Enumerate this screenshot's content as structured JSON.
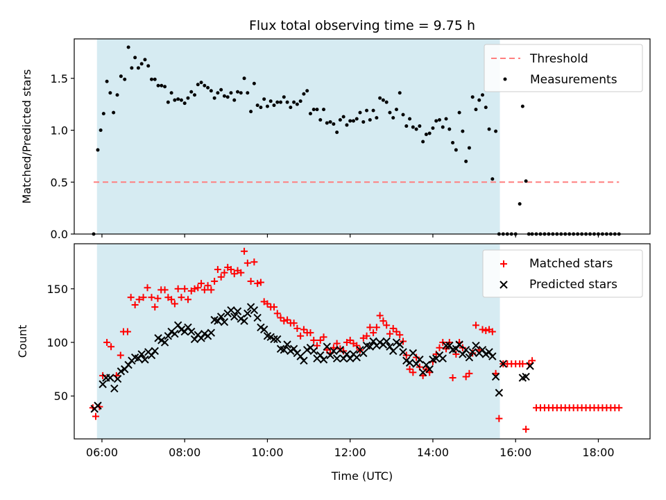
{
  "title": "Flux total observing time = 9.75 h",
  "colors": {
    "shade": "#add8e6",
    "threshold": "#ff7f7f",
    "measurements": "#000000",
    "matched": "#ff0000",
    "predicted": "#000000"
  },
  "chart_data": [
    {
      "type": "scatter",
      "title": "Flux total observing time = 9.75 h",
      "xlabel": "",
      "ylabel": "Matched/Predicted stars",
      "xlim": [
        5.33,
        19.25
      ],
      "ylim": [
        0,
        1.88
      ],
      "yticks": [
        0.0,
        0.5,
        1.0,
        1.5
      ],
      "ytick_labels": [
        "0.0",
        "0.5",
        "1.0",
        "1.5"
      ],
      "xticks": [
        6,
        8,
        10,
        12,
        14,
        16,
        18
      ],
      "shaded_span": [
        5.88,
        15.62
      ],
      "legend_position": "upper right",
      "threshold": {
        "name": "Threshold",
        "x": [
          5.8,
          18.5
        ],
        "y": [
          0.5,
          0.5
        ],
        "style": "dashed"
      },
      "series": [
        {
          "name": "Measurements",
          "marker": "dot",
          "x": [
            5.8,
            5.9,
            5.97,
            6.04,
            6.12,
            6.2,
            6.28,
            6.37,
            6.46,
            6.55,
            6.64,
            6.72,
            6.8,
            6.88,
            6.96,
            7.04,
            7.12,
            7.2,
            7.28,
            7.36,
            7.44,
            7.52,
            7.6,
            7.68,
            7.76,
            7.84,
            7.92,
            8.0,
            8.08,
            8.16,
            8.24,
            8.32,
            8.4,
            8.48,
            8.56,
            8.64,
            8.72,
            8.8,
            8.88,
            8.96,
            9.04,
            9.12,
            9.2,
            9.28,
            9.36,
            9.44,
            9.52,
            9.6,
            9.68,
            9.76,
            9.84,
            9.92,
            10.0,
            10.08,
            10.16,
            10.24,
            10.32,
            10.4,
            10.48,
            10.56,
            10.64,
            10.72,
            10.8,
            10.88,
            10.96,
            11.04,
            11.12,
            11.2,
            11.28,
            11.36,
            11.44,
            11.52,
            11.6,
            11.68,
            11.76,
            11.84,
            11.92,
            12.0,
            12.08,
            12.16,
            12.24,
            12.32,
            12.4,
            12.48,
            12.56,
            12.64,
            12.72,
            12.8,
            12.88,
            12.96,
            13.04,
            13.12,
            13.2,
            13.28,
            13.36,
            13.44,
            13.52,
            13.6,
            13.68,
            13.76,
            13.84,
            13.92,
            14.0,
            14.08,
            14.16,
            14.24,
            14.32,
            14.4,
            14.48,
            14.56,
            14.64,
            14.72,
            14.8,
            14.88,
            14.96,
            15.04,
            15.12,
            15.2,
            15.28,
            15.36,
            15.44,
            15.52,
            15.6,
            15.7,
            15.8,
            15.9,
            16.0,
            16.1,
            16.17,
            16.25,
            16.32,
            16.4,
            16.5,
            16.6,
            16.7,
            16.8,
            16.9,
            17.0,
            17.1,
            17.2,
            17.3,
            17.4,
            17.5,
            17.6,
            17.7,
            17.8,
            17.9,
            18.0,
            18.1,
            18.2,
            18.3,
            18.4,
            18.5
          ],
          "y": [
            0.0,
            0.81,
            1.0,
            1.16,
            1.47,
            1.36,
            1.17,
            1.34,
            1.52,
            1.49,
            1.8,
            1.6,
            1.7,
            1.6,
            1.64,
            1.68,
            1.62,
            1.49,
            1.49,
            1.43,
            1.43,
            1.42,
            1.27,
            1.36,
            1.29,
            1.3,
            1.29,
            1.26,
            1.31,
            1.37,
            1.34,
            1.44,
            1.46,
            1.43,
            1.41,
            1.38,
            1.31,
            1.36,
            1.39,
            1.33,
            1.32,
            1.36,
            1.29,
            1.37,
            1.36,
            1.5,
            1.36,
            1.18,
            1.45,
            1.24,
            1.22,
            1.3,
            1.23,
            1.28,
            1.24,
            1.27,
            1.27,
            1.32,
            1.27,
            1.22,
            1.27,
            1.25,
            1.28,
            1.35,
            1.38,
            1.16,
            1.2,
            1.2,
            1.1,
            1.2,
            1.07,
            1.08,
            1.06,
            0.98,
            1.1,
            1.13,
            1.05,
            1.09,
            1.09,
            1.11,
            1.17,
            1.08,
            1.19,
            1.1,
            1.19,
            1.12,
            1.31,
            1.29,
            1.27,
            1.17,
            1.12,
            1.2,
            1.36,
            1.15,
            1.04,
            1.11,
            1.03,
            1.01,
            1.04,
            0.89,
            0.96,
            0.97,
            1.02,
            1.09,
            1.1,
            1.03,
            1.11,
            1.01,
            0.88,
            0.81,
            1.17,
            0.99,
            0.7,
            0.83,
            1.32,
            1.2,
            1.29,
            1.34,
            1.22,
            1.01,
            0.53,
            0.99,
            0.0,
            0.0,
            0.0,
            0.0,
            0.0,
            0.29,
            1.23,
            0.51,
            0.0,
            0.0,
            0.0,
            0.0,
            0.0,
            0.0,
            0.0,
            0.0,
            0.0,
            0.0,
            0.0,
            0.0,
            0.0,
            0.0,
            0.0,
            0.0,
            0.0,
            0.0,
            0.0,
            0.0,
            0.0,
            0.0,
            0.0
          ]
        }
      ]
    },
    {
      "type": "scatter",
      "xlabel": "Time (UTC)",
      "ylabel": "Count",
      "xlim": [
        5.33,
        19.25
      ],
      "ylim": [
        10,
        192
      ],
      "yticks": [
        50,
        100,
        150
      ],
      "xticks": [
        6,
        8,
        10,
        12,
        14,
        16,
        18
      ],
      "xtick_labels": [
        "06:00",
        "08:00",
        "10:00",
        "12:00",
        "14:00",
        "16:00",
        "18:00"
      ],
      "shaded_span": [
        5.88,
        15.62
      ],
      "legend_position": "upper right",
      "series": [
        {
          "name": "Matched stars",
          "marker": "plus",
          "x": [
            5.78,
            5.85,
            5.94,
            6.02,
            6.12,
            6.22,
            6.35,
            6.45,
            6.52,
            6.62,
            6.7,
            6.8,
            6.9,
            7.0,
            7.1,
            7.2,
            7.28,
            7.35,
            7.43,
            7.52,
            7.6,
            7.68,
            7.76,
            7.84,
            7.92,
            8.0,
            8.08,
            8.16,
            8.24,
            8.32,
            8.4,
            8.48,
            8.56,
            8.64,
            8.72,
            8.8,
            8.88,
            8.96,
            9.04,
            9.12,
            9.2,
            9.28,
            9.36,
            9.44,
            9.52,
            9.6,
            9.68,
            9.76,
            9.84,
            9.92,
            10.0,
            10.08,
            10.16,
            10.24,
            10.32,
            10.4,
            10.48,
            10.56,
            10.64,
            10.72,
            10.8,
            10.88,
            10.96,
            11.04,
            11.12,
            11.2,
            11.28,
            11.36,
            11.44,
            11.52,
            11.6,
            11.68,
            11.76,
            11.84,
            11.92,
            12.0,
            12.08,
            12.16,
            12.24,
            12.32,
            12.4,
            12.48,
            12.56,
            12.64,
            12.72,
            12.8,
            12.88,
            12.96,
            13.04,
            13.12,
            13.2,
            13.28,
            13.36,
            13.44,
            13.52,
            13.6,
            13.68,
            13.76,
            13.84,
            13.92,
            14.0,
            14.08,
            14.16,
            14.24,
            14.32,
            14.4,
            14.48,
            14.56,
            14.64,
            14.72,
            14.8,
            14.88,
            14.96,
            15.04,
            15.12,
            15.2,
            15.28,
            15.36,
            15.44,
            15.52,
            15.6,
            15.7,
            15.8,
            15.9,
            16.0,
            16.1,
            16.17,
            16.25,
            16.32,
            16.4,
            16.5,
            16.6,
            16.7,
            16.8,
            16.9,
            17.0,
            17.1,
            17.2,
            17.3,
            17.4,
            17.5,
            17.6,
            17.7,
            17.8,
            17.9,
            18.0,
            18.1,
            18.2,
            18.3,
            18.4,
            18.5
          ],
          "y": [
            39,
            31,
            40,
            69,
            100,
            96,
            69,
            88,
            110,
            110,
            142,
            135,
            140,
            142,
            151,
            142,
            133,
            141,
            149,
            149,
            142,
            140,
            136,
            150,
            142,
            150,
            140,
            148,
            150,
            151,
            155,
            149,
            153,
            149,
            157,
            168,
            161,
            165,
            170,
            168,
            164,
            167,
            165,
            185,
            174,
            157,
            175,
            155,
            156,
            138,
            136,
            133,
            133,
            127,
            123,
            120,
            121,
            118,
            118,
            113,
            106,
            112,
            109,
            109,
            102,
            97,
            102,
            105,
            93,
            90,
            95,
            99,
            94,
            92,
            100,
            102,
            99,
            97,
            93,
            104,
            106,
            114,
            109,
            114,
            125,
            120,
            116,
            108,
            113,
            110,
            107,
            101,
            88,
            75,
            72,
            86,
            77,
            69,
            75,
            72,
            82,
            89,
            95,
            100,
            94,
            100,
            67,
            89,
            100,
            95,
            68,
            71,
            90,
            116,
            93,
            112,
            111,
            112,
            110,
            71,
            29,
            80,
            80,
            80,
            80,
            80,
            80,
            19,
            80,
            83,
            39,
            39,
            39,
            39,
            39,
            39,
            39,
            39,
            39,
            39,
            39,
            39,
            39,
            39,
            39,
            39,
            39,
            39,
            39,
            39,
            39
          ]
        },
        {
          "name": "Predicted stars",
          "marker": "x",
          "x": [
            5.82,
            5.9,
            6.02,
            6.1,
            6.2,
            6.3,
            6.38,
            6.46,
            6.55,
            6.64,
            6.72,
            6.8,
            6.88,
            6.96,
            7.04,
            7.12,
            7.2,
            7.28,
            7.36,
            7.44,
            7.52,
            7.6,
            7.68,
            7.76,
            7.84,
            7.92,
            8.0,
            8.08,
            8.16,
            8.24,
            8.32,
            8.4,
            8.48,
            8.56,
            8.64,
            8.72,
            8.8,
            8.88,
            8.96,
            9.04,
            9.12,
            9.2,
            9.28,
            9.36,
            9.44,
            9.52,
            9.6,
            9.68,
            9.76,
            9.84,
            9.92,
            10.0,
            10.08,
            10.16,
            10.24,
            10.32,
            10.4,
            10.48,
            10.56,
            10.64,
            10.72,
            10.8,
            10.88,
            10.96,
            11.04,
            11.12,
            11.2,
            11.28,
            11.36,
            11.44,
            11.52,
            11.6,
            11.68,
            11.76,
            11.84,
            11.92,
            12.0,
            12.08,
            12.16,
            12.24,
            12.32,
            12.4,
            12.48,
            12.56,
            12.64,
            12.72,
            12.8,
            12.88,
            12.96,
            13.04,
            13.12,
            13.2,
            13.28,
            13.36,
            13.44,
            13.52,
            13.6,
            13.68,
            13.76,
            13.84,
            13.92,
            14.0,
            14.08,
            14.16,
            14.24,
            14.32,
            14.4,
            14.48,
            14.56,
            14.64,
            14.72,
            14.8,
            14.88,
            14.96,
            15.04,
            15.12,
            15.2,
            15.28,
            15.36,
            15.44,
            15.52,
            15.6,
            15.7,
            16.17,
            16.25,
            16.35
          ],
          "y": [
            38,
            41,
            61,
            67,
            67,
            57,
            66,
            73,
            75,
            79,
            83,
            86,
            85,
            89,
            84,
            91,
            88,
            92,
            104,
            102,
            100,
            106,
            110,
            108,
            116,
            112,
            110,
            114,
            110,
            103,
            107,
            104,
            108,
            106,
            109,
            121,
            120,
            124,
            119,
            127,
            130,
            124,
            129,
            122,
            120,
            127,
            133,
            130,
            123,
            114,
            112,
            106,
            105,
            103,
            103,
            94,
            93,
            98,
            92,
            94,
            90,
            87,
            83,
            93,
            95,
            92,
            85,
            88,
            84,
            96,
            88,
            92,
            85,
            93,
            85,
            89,
            85,
            89,
            86,
            93,
            90,
            97,
            96,
            101,
            97,
            100,
            98,
            101,
            96,
            92,
            100,
            98,
            91,
            83,
            81,
            90,
            80,
            84,
            72,
            79,
            75,
            84,
            85,
            88,
            85,
            97,
            97,
            93,
            94,
            98,
            89,
            93,
            86,
            91,
            97,
            90,
            93,
            89,
            91,
            87,
            68,
            53,
            80,
            67,
            68,
            78
          ]
        }
      ]
    }
  ]
}
